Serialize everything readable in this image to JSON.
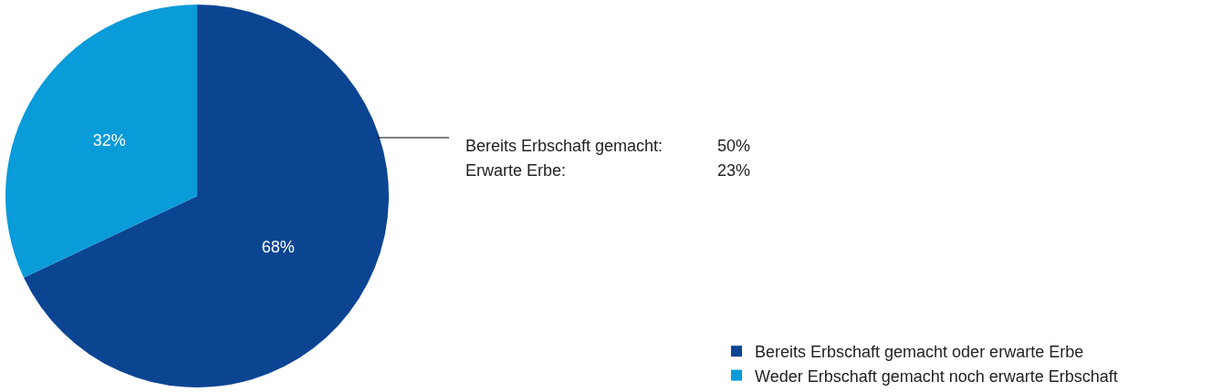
{
  "chart_data": {
    "type": "pie",
    "categories": [
      "Bereits Erbschaft gemacht oder erwarte Erbe",
      "Weder Erbschaft gemacht noch erwarte Erbschaft"
    ],
    "values": [
      68,
      32
    ],
    "colors": [
      "#0b4592",
      "#0a9bd9"
    ],
    "value_labels": [
      "68%",
      "32%"
    ],
    "annotations": [
      "Bereits Erbschaft gemacht: 50%",
      "Erwarte Erbe: 23%"
    ],
    "legend": "bottom right"
  }
}
